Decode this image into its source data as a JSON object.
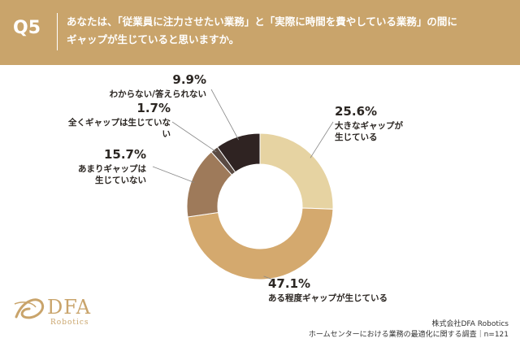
{
  "header": {
    "question_no": "Q5",
    "question_text": "あなたは、「従業員に注力させたい業務」と「実際に時間を費やしている業務」の間に\nギャップが生じていると思いますか。"
  },
  "chart_data": {
    "type": "pie",
    "donut": true,
    "title": "",
    "slices": [
      {
        "label": "大きなギャップが\n生じている",
        "value": 25.6,
        "display": "25.6%",
        "color": "#e6d3a2"
      },
      {
        "label": "ある程度ギャップが生じている",
        "value": 47.1,
        "display": "47.1%",
        "color": "#d4a96e"
      },
      {
        "label": "あまりギャップは\n生じていない",
        "value": 15.7,
        "display": "15.7%",
        "color": "#9e7a5a"
      },
      {
        "label": "全くギャップは生じていな\nい",
        "value": 1.7,
        "display": "1.7%",
        "color": "#5a4a42"
      },
      {
        "label": "わからない/答えられない",
        "value": 9.9,
        "display": "9.9%",
        "color": "#2f2322"
      }
    ]
  },
  "footer": {
    "company": "株式会社DFA Robotics",
    "survey": "ホームセンターにおける業務の最適化に関する調査｜n=121"
  },
  "logo": {
    "name": "DFA",
    "sub": "Robotics"
  }
}
